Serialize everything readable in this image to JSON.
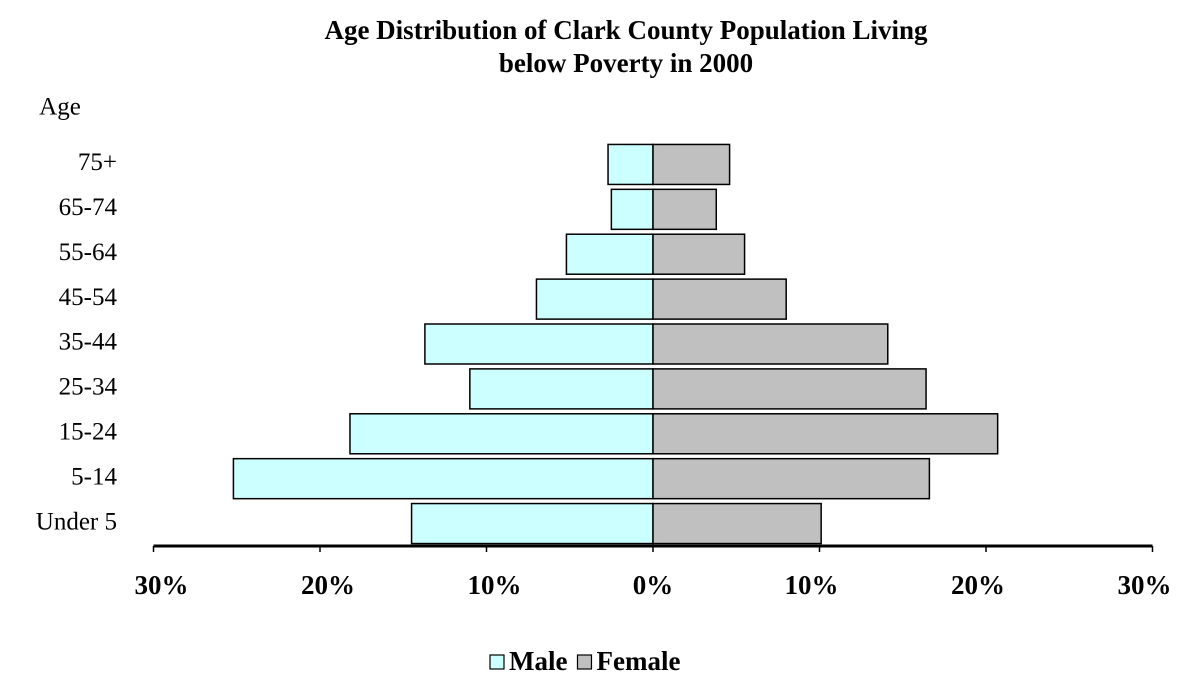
{
  "chart_data": {
    "type": "pyramid",
    "title": [
      "Age Distribution of Clark County Population Living",
      "below Poverty in 2000"
    ],
    "y_label": "Age",
    "categories": [
      "Under 5",
      "5-14",
      "15-24",
      "25-34",
      "35-44",
      "45-54",
      "55-64",
      "65-74",
      "75+"
    ],
    "series": [
      {
        "name": "Male",
        "color": "#ccffff",
        "side": "left",
        "values": [
          14.5,
          25.2,
          18.2,
          11.0,
          13.7,
          7.0,
          5.2,
          2.5,
          2.7
        ]
      },
      {
        "name": "Female",
        "color": "#c0c0c0",
        "side": "right",
        "values": [
          10.1,
          16.6,
          20.7,
          16.4,
          14.1,
          8.0,
          5.5,
          3.8,
          4.6
        ]
      }
    ],
    "xlim": [
      0,
      30
    ],
    "xticks": [
      {
        "value": 0,
        "label": "0%"
      },
      {
        "value": 10,
        "label": "10%"
      },
      {
        "value": 20,
        "label": "20%"
      },
      {
        "value": 30,
        "label": "30%"
      }
    ],
    "legend": "bottom"
  }
}
